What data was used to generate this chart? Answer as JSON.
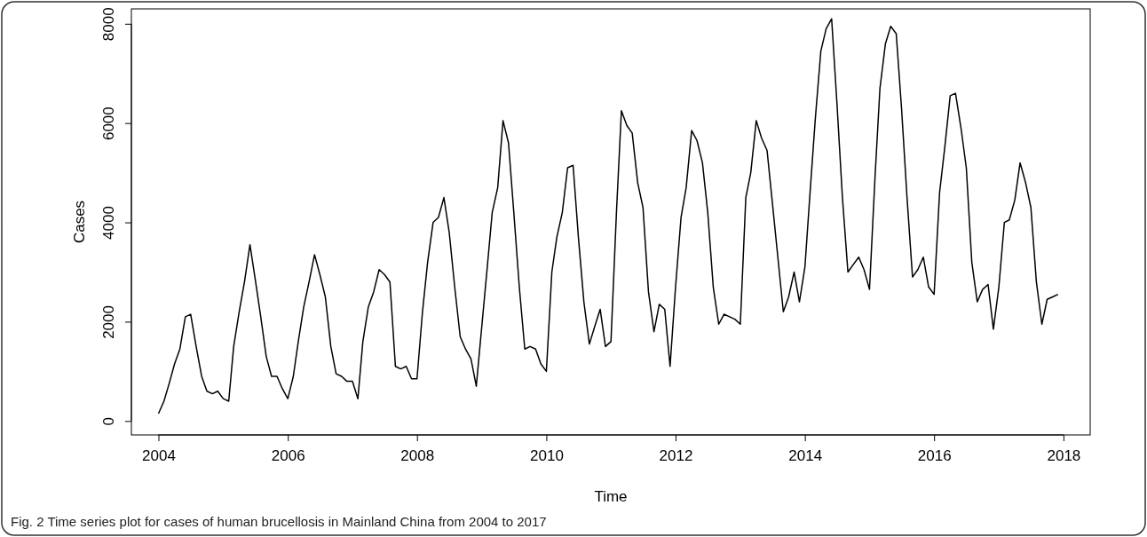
{
  "chart_data": {
    "type": "line",
    "xlabel": "Time",
    "ylabel": "Cases",
    "annotations": [
      "Fig. 2 Time series plot for cases of human brucellosis in Mainland China from 2004 to 2017"
    ],
    "x": [
      "2004-01",
      "2004-02",
      "2004-03",
      "2004-04",
      "2004-05",
      "2004-06",
      "2004-07",
      "2004-08",
      "2004-09",
      "2004-10",
      "2004-11",
      "2004-12",
      "2005-01",
      "2005-02",
      "2005-03",
      "2005-04",
      "2005-05",
      "2005-06",
      "2005-07",
      "2005-08",
      "2005-09",
      "2005-10",
      "2005-11",
      "2005-12",
      "2006-01",
      "2006-02",
      "2006-03",
      "2006-04",
      "2006-05",
      "2006-06",
      "2006-07",
      "2006-08",
      "2006-09",
      "2006-10",
      "2006-11",
      "2006-12",
      "2007-01",
      "2007-02",
      "2007-03",
      "2007-04",
      "2007-05",
      "2007-06",
      "2007-07",
      "2007-08",
      "2007-09",
      "2007-10",
      "2007-11",
      "2007-12",
      "2008-01",
      "2008-02",
      "2008-03",
      "2008-04",
      "2008-05",
      "2008-06",
      "2008-07",
      "2008-08",
      "2008-09",
      "2008-10",
      "2008-11",
      "2008-12",
      "2009-01",
      "2009-02",
      "2009-03",
      "2009-04",
      "2009-05",
      "2009-06",
      "2009-07",
      "2009-08",
      "2009-09",
      "2009-10",
      "2009-11",
      "2009-12",
      "2010-01",
      "2010-02",
      "2010-03",
      "2010-04",
      "2010-05",
      "2010-06",
      "2010-07",
      "2010-08",
      "2010-09",
      "2010-10",
      "2010-11",
      "2010-12",
      "2011-01",
      "2011-02",
      "2011-03",
      "2011-04",
      "2011-05",
      "2011-06",
      "2011-07",
      "2011-08",
      "2011-09",
      "2011-10",
      "2011-11",
      "2011-12",
      "2012-01",
      "2012-02",
      "2012-03",
      "2012-04",
      "2012-05",
      "2012-06",
      "2012-07",
      "2012-08",
      "2012-09",
      "2012-10",
      "2012-11",
      "2012-12",
      "2013-01",
      "2013-02",
      "2013-03",
      "2013-04",
      "2013-05",
      "2013-06",
      "2013-07",
      "2013-08",
      "2013-09",
      "2013-10",
      "2013-11",
      "2013-12",
      "2014-01",
      "2014-02",
      "2014-03",
      "2014-04",
      "2014-05",
      "2014-06",
      "2014-07",
      "2014-08",
      "2014-09",
      "2014-10",
      "2014-11",
      "2014-12",
      "2015-01",
      "2015-02",
      "2015-03",
      "2015-04",
      "2015-05",
      "2015-06",
      "2015-07",
      "2015-08",
      "2015-09",
      "2015-10",
      "2015-11",
      "2015-12",
      "2016-01",
      "2016-02",
      "2016-03",
      "2016-04",
      "2016-05",
      "2016-06",
      "2016-07",
      "2016-08",
      "2016-09",
      "2016-10",
      "2016-11",
      "2016-12",
      "2017-01",
      "2017-02",
      "2017-03",
      "2017-04",
      "2017-05",
      "2017-06",
      "2017-07",
      "2017-08",
      "2017-09",
      "2017-10",
      "2017-11",
      "2017-12"
    ],
    "series": [
      {
        "color": "#000000",
        "values": [
          150,
          400,
          750,
          1150,
          1450,
          2100,
          2150,
          1500,
          900,
          600,
          550,
          600,
          450,
          400,
          1500,
          2200,
          2800,
          3550,
          2850,
          2100,
          1300,
          900,
          900,
          650,
          450,
          900,
          1600,
          2300,
          2800,
          3350,
          2950,
          2500,
          1500,
          950,
          900,
          800,
          800,
          450,
          1600,
          2300,
          2600,
          3050,
          2950,
          2800,
          1100,
          1050,
          1100,
          850,
          850,
          2200,
          3200,
          4000,
          4100,
          4500,
          3800,
          2700,
          1700,
          1450,
          1250,
          700,
          1900,
          3100,
          4200,
          4700,
          6050,
          5600,
          4200,
          2700,
          1450,
          1500,
          1450,
          1150,
          1000,
          3000,
          3700,
          4200,
          5100,
          5150,
          3700,
          2400,
          1550,
          1900,
          2250,
          1500,
          1600,
          4200,
          6250,
          5950,
          5800,
          4800,
          4300,
          2600,
          1800,
          2350,
          2250,
          1100,
          2700,
          4100,
          4700,
          5850,
          5650,
          5200,
          4200,
          2700,
          1950,
          2150,
          2100,
          2050,
          1950,
          4500,
          5000,
          6050,
          5700,
          5450,
          4400,
          3300,
          2200,
          2500,
          3000,
          2400,
          3100,
          4700,
          6100,
          7450,
          7900,
          8100,
          6400,
          4500,
          3000,
          3150,
          3300,
          3050,
          2650,
          4900,
          6700,
          7600,
          7950,
          7800,
          6300,
          4500,
          2900,
          3050,
          3300,
          2700,
          2550,
          4600,
          5500,
          6550,
          6600,
          5900,
          5100,
          3200,
          2400,
          2650,
          2750,
          1850,
          2700,
          4000,
          4050,
          4450,
          5200,
          4800,
          4300,
          2800,
          1950,
          2450,
          2500,
          2550
        ]
      }
    ],
    "xlim": [
      "2003-08",
      "2018-06"
    ],
    "xticks": [
      "2004",
      "2006",
      "2008",
      "2010",
      "2012",
      "2014",
      "2016",
      "2018"
    ],
    "ylim": [
      -280,
      8300
    ],
    "yticks": [
      0,
      2000,
      4000,
      6000,
      8000
    ],
    "grid": false,
    "marker": "none",
    "line_style": "solid"
  }
}
